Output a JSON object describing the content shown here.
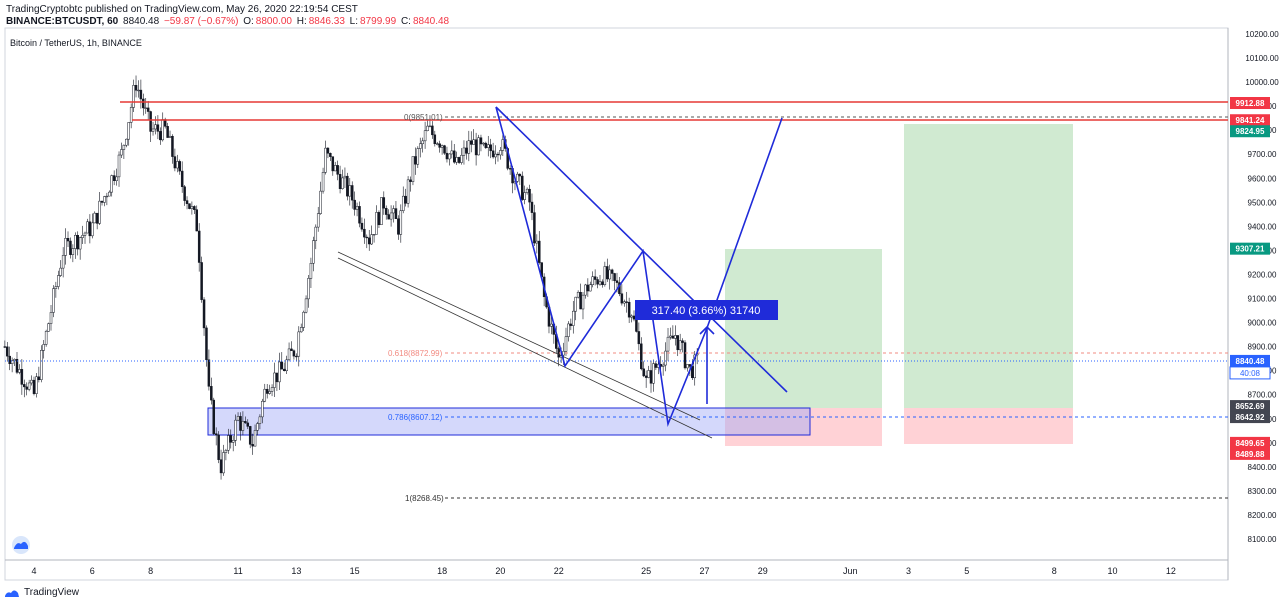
{
  "header": {
    "line1": "TradingCryptobtc published on TradingView.com, May 26, 2020 22:19:54 CEST",
    "symbol": "BINANCE:BTCUSDT, 60",
    "last": "8840.48",
    "change": "−59.87 (−0.67%)",
    "o_label": "O:",
    "o": "8800.00",
    "h_label": "H:",
    "h": "8846.33",
    "l_label": "L:",
    "l": "8799.99",
    "c_label": "C:",
    "c": "8840.48"
  },
  "ticker_label": "Bitcoin / TetherUS, 1h, BINANCE",
  "footer": {
    "brand": "TradingView"
  },
  "annotations": {
    "measure_box": "317.40 (3.66%) 31740",
    "fib_0": "0(9851.01)",
    "fib_618": "0.618(8872.99)",
    "fib_786": "0.786(8607.12)",
    "fib_1": "1(8268.45)"
  },
  "colors": {
    "bull": "#131722",
    "red_line": "#e53935",
    "pattern": "#1f2bd9",
    "zone": "#9fa8f7",
    "profit": "#c8e6c9",
    "loss": "#ffcdd2",
    "green_badge": "#089981",
    "red_badge": "#f23645",
    "blue_badge": "#2962ff"
  },
  "chart_data": {
    "type": "candlestick",
    "ylim": [
      8000,
      10250
    ],
    "y_ticks": [
      8100,
      8200,
      8300,
      8400,
      8500,
      8600,
      8700,
      8800,
      8900,
      9000,
      9100,
      9200,
      9300,
      9400,
      9500,
      9600,
      9700,
      9800,
      9900,
      10000,
      10100,
      10200
    ],
    "x_ticks": [
      "4",
      "6",
      "8",
      "11",
      "13",
      "15",
      "18",
      "20",
      "22",
      "25",
      "27",
      "29",
      "Jun",
      "3",
      "5",
      "8",
      "10",
      "12"
    ],
    "x_tick_days": [
      4,
      6,
      8,
      11,
      13,
      15,
      18,
      20,
      22,
      25,
      27,
      29,
      32,
      34,
      36,
      39,
      41,
      43
    ],
    "price_path": [
      [
        3,
        8900
      ],
      [
        4,
        8700
      ],
      [
        5,
        9300
      ],
      [
        6,
        9400
      ],
      [
        7,
        9700
      ],
      [
        7.5,
        10000
      ],
      [
        8,
        9800
      ],
      [
        8.5,
        9800
      ],
      [
        9,
        9600
      ],
      [
        9.6,
        9400
      ],
      [
        10,
        8700
      ],
      [
        10.4,
        8400
      ],
      [
        11,
        8600
      ],
      [
        11.5,
        8500
      ],
      [
        12,
        8750
      ],
      [
        12.5,
        8800
      ],
      [
        13,
        8900
      ],
      [
        13.5,
        9250
      ],
      [
        14,
        9700
      ],
      [
        14.5,
        9600
      ],
      [
        15,
        9500
      ],
      [
        15.5,
        9350
      ],
      [
        16,
        9500
      ],
      [
        16.5,
        9400
      ],
      [
        17,
        9650
      ],
      [
        17.5,
        9800
      ],
      [
        18,
        9750
      ],
      [
        18.5,
        9650
      ],
      [
        19,
        9750
      ],
      [
        19.5,
        9700
      ],
      [
        20,
        9750
      ],
      [
        20.5,
        9600
      ],
      [
        21,
        9500
      ],
      [
        21.5,
        9100
      ],
      [
        22,
        8850
      ],
      [
        22.5,
        9050
      ],
      [
        23,
        9150
      ],
      [
        23.5,
        9200
      ],
      [
        24,
        9150
      ],
      [
        24.5,
        9050
      ],
      [
        25,
        8750
      ],
      [
        25.5,
        8850
      ],
      [
        26,
        8950
      ],
      [
        26.5,
        8800
      ],
      [
        26.8,
        8840
      ]
    ],
    "price_levels": [
      {
        "price": 9912.88,
        "label": "9912.88",
        "color": "red"
      },
      {
        "price": 9841.24,
        "label": "9841.24",
        "color": "red"
      },
      {
        "price": 9824.95,
        "label": "9824.95",
        "color": "green"
      },
      {
        "price": 9307.21,
        "label": "9307.21",
        "color": "green"
      },
      {
        "price": 8840.48,
        "label": "8840.48",
        "color": "blue"
      },
      {
        "price": 8652.69,
        "label": "8652.69",
        "color": "dark"
      },
      {
        "price": 8642.92,
        "label": "8642.92",
        "color": "dark"
      },
      {
        "price": 8499.65,
        "label": "8499.65",
        "color": "red"
      },
      {
        "price": 8489.88,
        "label": "8489.88",
        "color": "red"
      }
    ],
    "countdown": "40:08"
  }
}
